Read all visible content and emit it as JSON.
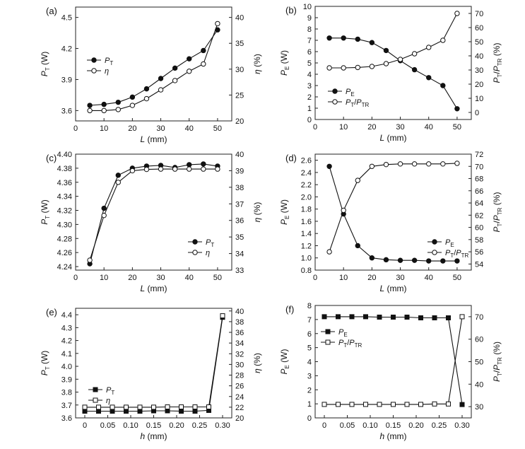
{
  "figure": {
    "background": "#ffffff",
    "axis_color": "#222222",
    "marker_color": "#111111"
  },
  "chart_data": [
    {
      "id": "a",
      "panel_label": "(a)",
      "type": "line",
      "x": [
        5,
        10,
        15,
        20,
        25,
        30,
        35,
        40,
        45,
        50
      ],
      "xlabel": {
        "text": "L",
        "unit": " (mm)"
      },
      "xlim": [
        0,
        55
      ],
      "xticks": [
        0,
        10,
        20,
        30,
        40,
        50
      ],
      "xtick_labels": [
        "0",
        "10",
        "20",
        "30",
        "40",
        "50"
      ],
      "ylim": [
        3.5,
        4.6
      ],
      "yticks": [
        3.6,
        3.9,
        4.2,
        4.5
      ],
      "ytick_labels": [
        "3.6",
        "3.9",
        "4.2",
        "4.5"
      ],
      "ylabel": {
        "text": "P",
        "sub": "T",
        "unit": " (W)"
      },
      "y2lim": [
        20,
        42
      ],
      "y2ticks": [
        20,
        25,
        30,
        35,
        40
      ],
      "y2tick_labels": [
        "20",
        "25",
        "30",
        "35",
        "40"
      ],
      "y2label": {
        "text": "η",
        "sub": "",
        "unit": " (%)"
      },
      "legend_position": "left",
      "series": [
        {
          "name": "P",
          "sub": "T",
          "axis": "left",
          "marker": "circle",
          "filled": true,
          "values": [
            3.65,
            3.66,
            3.68,
            3.73,
            3.81,
            3.91,
            4.01,
            4.1,
            4.18,
            4.38
          ]
        },
        {
          "name": "η",
          "sub": "",
          "axis": "right",
          "marker": "circle",
          "filled": false,
          "values": [
            22.0,
            22.0,
            22.2,
            23.0,
            24.3,
            26.0,
            27.8,
            29.6,
            31.0,
            38.8
          ]
        }
      ]
    },
    {
      "id": "b",
      "panel_label": "(b)",
      "type": "line",
      "x": [
        5,
        10,
        15,
        20,
        25,
        30,
        35,
        40,
        45,
        50
      ],
      "xlabel": {
        "text": "L",
        "unit": " (mm)"
      },
      "xlim": [
        0,
        55
      ],
      "xticks": [
        0,
        10,
        20,
        30,
        40,
        50
      ],
      "xtick_labels": [
        "0",
        "10",
        "20",
        "30",
        "40",
        "50"
      ],
      "ylim": [
        0,
        10
      ],
      "yticks": [
        0,
        1,
        2,
        3,
        4,
        5,
        6,
        7,
        8,
        9,
        10
      ],
      "ytick_labels": [
        "0",
        "1",
        "2",
        "3",
        "4",
        "5",
        "6",
        "7",
        "8",
        "9",
        "10"
      ],
      "ylabel": {
        "text": "P",
        "sub": "E",
        "unit": " (W)"
      },
      "y2lim": [
        -5,
        75
      ],
      "y2ticks": [
        0,
        10,
        20,
        30,
        40,
        50,
        60,
        70
      ],
      "y2tick_labels": [
        "0",
        "10",
        "20",
        "30",
        "40",
        "50",
        "60",
        "70"
      ],
      "y2label": {
        "text": "P",
        "sub": "T",
        "text2": "/P",
        "sub2": "TR",
        "unit": " (%)"
      },
      "legend_position": "bottom-left",
      "series": [
        {
          "name": "P",
          "sub": "E",
          "axis": "left",
          "marker": "circle",
          "filled": true,
          "values": [
            7.2,
            7.2,
            7.1,
            6.8,
            6.1,
            5.2,
            4.4,
            3.7,
            3.0,
            0.95
          ]
        },
        {
          "name": "P",
          "sub": "T",
          "name2": "/P",
          "sub2": "TR",
          "axis": "right",
          "marker": "circle",
          "filled": false,
          "values": [
            31.5,
            31.5,
            31.8,
            32.5,
            34.5,
            37.5,
            41.5,
            46.0,
            51.0,
            70.0
          ]
        }
      ]
    },
    {
      "id": "c",
      "panel_label": "(c)",
      "type": "line",
      "x": [
        5,
        10,
        15,
        20,
        25,
        30,
        35,
        40,
        45,
        50
      ],
      "xlabel": {
        "text": "L",
        "unit": " (mm)"
      },
      "xlim": [
        0,
        55
      ],
      "xticks": [
        0,
        10,
        20,
        30,
        40,
        50
      ],
      "xtick_labels": [
        "0",
        "10",
        "20",
        "30",
        "40",
        "50"
      ],
      "ylim": [
        4.235,
        4.4
      ],
      "yticks": [
        4.24,
        4.26,
        4.28,
        4.3,
        4.32,
        4.34,
        4.36,
        4.38,
        4.4
      ],
      "ytick_labels": [
        "4.24",
        "4.26",
        "4.28",
        "4.30",
        "4.32",
        "4.34",
        "4.36",
        "4.38",
        "4.40"
      ],
      "ylabel": {
        "text": "P",
        "sub": "T",
        "unit": " (W)"
      },
      "y2lim": [
        33,
        40
      ],
      "y2ticks": [
        33,
        34,
        35,
        36,
        37,
        38,
        39,
        40
      ],
      "y2tick_labels": [
        "33",
        "34",
        "35",
        "36",
        "37",
        "38",
        "39",
        "40"
      ],
      "y2label": {
        "text": "η",
        "sub": "",
        "unit": " (%)"
      },
      "legend_position": "bottom-right",
      "series": [
        {
          "name": "P",
          "sub": "T",
          "axis": "left",
          "marker": "circle",
          "filled": true,
          "values": [
            4.244,
            4.323,
            4.37,
            4.38,
            4.383,
            4.384,
            4.381,
            4.385,
            4.386,
            4.383
          ]
        },
        {
          "name": "η",
          "sub": "",
          "axis": "right",
          "marker": "circle",
          "filled": false,
          "values": [
            33.6,
            36.3,
            38.3,
            39.0,
            39.08,
            39.1,
            39.1,
            39.1,
            39.1,
            39.1
          ]
        }
      ]
    },
    {
      "id": "d",
      "panel_label": "(d)",
      "type": "line",
      "x": [
        5,
        10,
        15,
        20,
        25,
        30,
        35,
        40,
        45,
        50
      ],
      "xlabel": {
        "text": "L",
        "unit": " (mm)"
      },
      "xlim": [
        0,
        55
      ],
      "xticks": [
        0,
        10,
        20,
        30,
        40,
        50
      ],
      "xtick_labels": [
        "0",
        "10",
        "20",
        "30",
        "40",
        "50"
      ],
      "ylim": [
        0.8,
        2.7
      ],
      "yticks": [
        0.8,
        1.0,
        1.2,
        1.4,
        1.6,
        1.8,
        2.0,
        2.2,
        2.4,
        2.6
      ],
      "ytick_labels": [
        "0.8",
        "1.0",
        "1.2",
        "1.4",
        "1.6",
        "1.8",
        "2.0",
        "2.2",
        "2.4",
        "2.6"
      ],
      "ylabel": {
        "text": "P",
        "sub": "E",
        "unit": " (W)"
      },
      "y2lim": [
        53,
        72
      ],
      "y2ticks": [
        54,
        56,
        58,
        60,
        62,
        64,
        66,
        68,
        70,
        72
      ],
      "y2tick_labels": [
        "54",
        "56",
        "58",
        "60",
        "62",
        "64",
        "66",
        "68",
        "70",
        "72"
      ],
      "y2label": {
        "text": "P",
        "sub": "T",
        "text2": "/P",
        "sub2": "TR",
        "unit": " (%)"
      },
      "legend_position": "bottom-right",
      "series": [
        {
          "name": "P",
          "sub": "E",
          "axis": "left",
          "marker": "circle",
          "filled": true,
          "values": [
            2.5,
            1.72,
            1.2,
            1.0,
            0.97,
            0.96,
            0.96,
            0.95,
            0.95,
            0.95
          ]
        },
        {
          "name": "P",
          "sub": "T",
          "name2": "/P",
          "sub2": "TR",
          "axis": "right",
          "marker": "circle",
          "filled": false,
          "values": [
            56.0,
            62.8,
            67.7,
            70.0,
            70.3,
            70.4,
            70.4,
            70.4,
            70.4,
            70.5
          ]
        }
      ]
    },
    {
      "id": "e",
      "panel_label": "(e)",
      "type": "line",
      "x": [
        0,
        0.03,
        0.06,
        0.09,
        0.12,
        0.15,
        0.18,
        0.21,
        0.24,
        0.27,
        0.3
      ],
      "xlabel": {
        "text": "h",
        "unit": " (mm)"
      },
      "xlim": [
        -0.02,
        0.32
      ],
      "xticks": [
        0,
        0.05,
        0.1,
        0.15,
        0.2,
        0.25,
        0.3
      ],
      "xtick_labels": [
        "0",
        "0.05",
        "0.10",
        "0.15",
        "0.20",
        "0.25",
        "0.30"
      ],
      "ylim": [
        3.6,
        4.45
      ],
      "yticks": [
        3.6,
        3.7,
        3.8,
        3.9,
        4.0,
        4.1,
        4.2,
        4.3,
        4.4
      ],
      "ytick_labels": [
        "3.6",
        "3.7",
        "3.8",
        "3.9",
        "4.0",
        "4.1",
        "4.2",
        "4.3",
        "4.4"
      ],
      "ylabel": {
        "text": "P",
        "sub": "T",
        "unit": " (W)"
      },
      "y2lim": [
        20,
        40.5
      ],
      "y2ticks": [
        20,
        22,
        24,
        26,
        28,
        30,
        32,
        34,
        36,
        38,
        40
      ],
      "y2tick_labels": [
        "20",
        "22",
        "24",
        "26",
        "28",
        "30",
        "32",
        "34",
        "36",
        "38",
        "40"
      ],
      "y2label": {
        "text": "η",
        "sub": "",
        "unit": " (%)"
      },
      "legend_position": "bottom-left",
      "series": [
        {
          "name": "P",
          "sub": "T",
          "axis": "left",
          "marker": "square",
          "filled": true,
          "values": [
            3.652,
            3.652,
            3.652,
            3.652,
            3.652,
            3.655,
            3.655,
            3.652,
            3.652,
            3.658,
            4.38
          ]
        },
        {
          "name": "η",
          "sub": "",
          "axis": "right",
          "marker": "square",
          "filled": false,
          "values": [
            22.0,
            22.0,
            22.0,
            22.0,
            22.0,
            22.0,
            22.05,
            22.05,
            22.05,
            22.05,
            39.1
          ]
        }
      ]
    },
    {
      "id": "f",
      "panel_label": "(f)",
      "type": "line",
      "x": [
        0,
        0.03,
        0.06,
        0.09,
        0.12,
        0.15,
        0.18,
        0.21,
        0.24,
        0.27,
        0.3
      ],
      "xlabel": {
        "text": "h",
        "unit": " (mm)"
      },
      "xlim": [
        -0.02,
        0.32
      ],
      "xticks": [
        0,
        0.05,
        0.1,
        0.15,
        0.2,
        0.25,
        0.3
      ],
      "xtick_labels": [
        "0",
        "0.05",
        "0.10",
        "0.15",
        "0.20",
        "0.25",
        "0.30"
      ],
      "ylim": [
        0,
        8
      ],
      "yticks": [
        0,
        1,
        2,
        3,
        4,
        5,
        6,
        7,
        8
      ],
      "ytick_labels": [
        "0",
        "1",
        "2",
        "3",
        "4",
        "5",
        "6",
        "7",
        "8"
      ],
      "ylabel": {
        "text": "P",
        "sub": "E",
        "unit": " (W)"
      },
      "y2lim": [
        25,
        75
      ],
      "y2ticks": [
        30,
        40,
        50,
        60,
        70
      ],
      "y2tick_labels": [
        "30",
        "40",
        "50",
        "60",
        "70"
      ],
      "y2label": {
        "text": "P",
        "sub": "T",
        "text2": "/P",
        "sub2": "TR",
        "unit": " (%)"
      },
      "legend_position": "top-left",
      "series": [
        {
          "name": "P",
          "sub": "E",
          "axis": "left",
          "marker": "square",
          "filled": true,
          "values": [
            7.2,
            7.2,
            7.2,
            7.2,
            7.17,
            7.17,
            7.17,
            7.12,
            7.12,
            7.12,
            0.95
          ]
        },
        {
          "name": "P",
          "sub": "T",
          "name2": "/P",
          "sub2": "TR",
          "axis": "right",
          "marker": "square",
          "filled": false,
          "values": [
            31.0,
            31.0,
            31.0,
            31.0,
            31.0,
            31.0,
            31.0,
            31.0,
            31.2,
            31.2,
            70.0
          ]
        }
      ]
    }
  ]
}
